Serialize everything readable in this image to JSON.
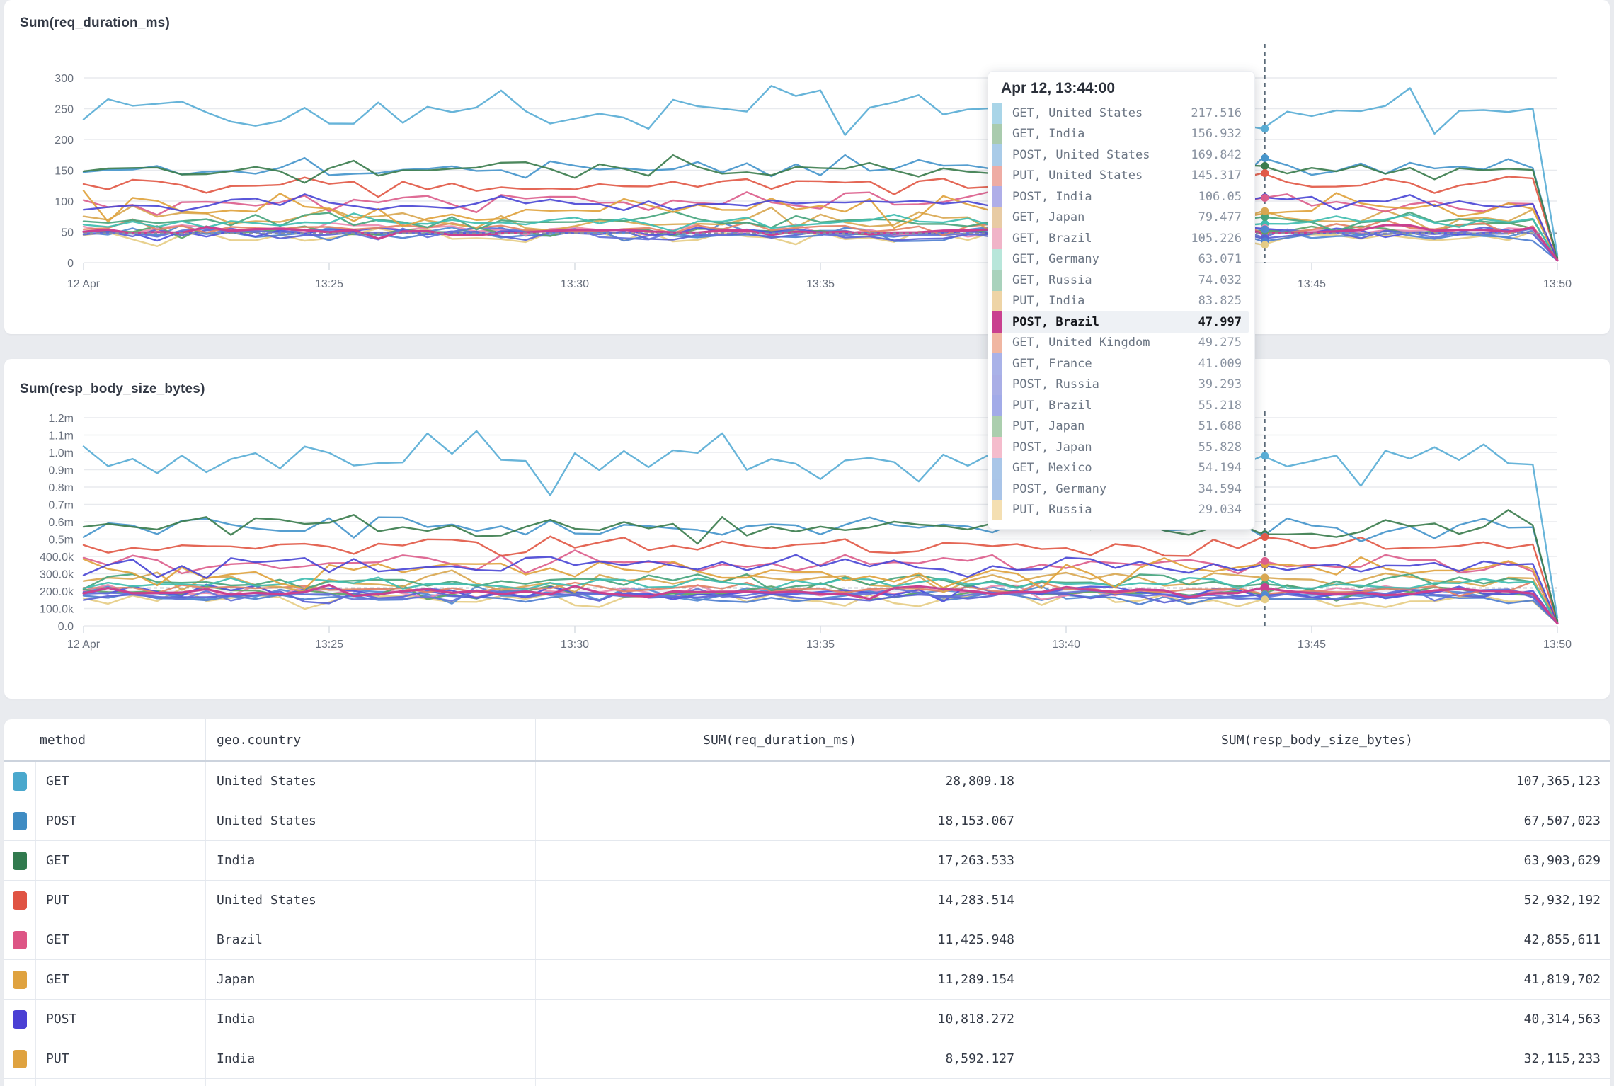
{
  "accent_colors": {
    "page_bg": "#e9ebef",
    "card_bg": "#ffffff",
    "grid": "#e8eaee",
    "axis_text": "#69707d",
    "title_text": "#343a46",
    "crosshair": "#5b6b79"
  },
  "chart_data": [
    {
      "type": "line",
      "title": "Sum(req_duration_ms)",
      "x_ticks": [
        "12 Apr",
        "13:25",
        "13:30",
        "13:35",
        "13:40",
        "13:45",
        "13:50"
      ],
      "y_tick_labels": [
        "0",
        "50",
        "100",
        "150",
        "200",
        "250",
        "300"
      ],
      "ylim": [
        0,
        300
      ],
      "grid": true,
      "legend": "tooltip-only",
      "hover_time": "Apr 12, 13:44:00",
      "highlighted_series": "POST, Brazil",
      "series": [
        {
          "name": "GET, United States",
          "color": "#5aaed6",
          "value_at_hover": 217.516,
          "approx_mean": 246,
          "amplitude": 26
        },
        {
          "name": "GET, India",
          "color": "#3d7e4f",
          "value_at_hover": 156.932,
          "approx_mean": 153,
          "amplitude": 16
        },
        {
          "name": "POST, United States",
          "color": "#4796cc",
          "value_at_hover": 169.842,
          "approx_mean": 153,
          "amplitude": 12
        },
        {
          "name": "PUT, United States",
          "color": "#e25a48",
          "value_at_hover": 145.317,
          "approx_mean": 130,
          "amplitude": 13
        },
        {
          "name": "POST, India",
          "color": "#4c49d6",
          "value_at_hover": 106.05,
          "approx_mean": 97,
          "amplitude": 11
        },
        {
          "name": "GET, Japan",
          "color": "#e0a33e",
          "value_at_hover": 79.477,
          "approx_mean": 84,
          "amplitude": 20
        },
        {
          "name": "GET, Brazil",
          "color": "#dc5f8d",
          "value_at_hover": 105.226,
          "approx_mean": 97,
          "amplitude": 12
        },
        {
          "name": "GET, Germany",
          "color": "#3fbdb0",
          "value_at_hover": 63.071,
          "approx_mean": 66,
          "amplitude": 9
        },
        {
          "name": "GET, Russia",
          "color": "#48a57e",
          "value_at_hover": 74.032,
          "approx_mean": 68,
          "amplitude": 11
        },
        {
          "name": "PUT, India",
          "color": "#d9a852",
          "value_at_hover": 83.825,
          "approx_mean": 70,
          "amplitude": 14
        },
        {
          "name": "POST, Brazil",
          "color": "#c9408f",
          "value_at_hover": 47.997,
          "approx_mean": 51,
          "amplitude": 7
        },
        {
          "name": "GET, United Kingdom",
          "color": "#e38266",
          "value_at_hover": 49.275,
          "approx_mean": 56,
          "amplitude": 8
        },
        {
          "name": "GET, France",
          "color": "#6472d8",
          "value_at_hover": 41.009,
          "approx_mean": 48,
          "amplitude": 7
        },
        {
          "name": "POST, Russia",
          "color": "#5a62d4",
          "value_at_hover": 39.293,
          "approx_mean": 45,
          "amplitude": 7
        },
        {
          "name": "PUT, Brazil",
          "color": "#5053dc",
          "value_at_hover": 55.218,
          "approx_mean": 50,
          "amplitude": 9
        },
        {
          "name": "PUT, Japan",
          "color": "#5ca368",
          "value_at_hover": 51.688,
          "approx_mean": 52,
          "amplitude": 8
        },
        {
          "name": "POST, Japan",
          "color": "#ec8ab0",
          "value_at_hover": 55.828,
          "approx_mean": 53,
          "amplitude": 9
        },
        {
          "name": "GET, Mexico",
          "color": "#5289d2",
          "value_at_hover": 54.194,
          "approx_mean": 50,
          "amplitude": 9
        },
        {
          "name": "POST, Germany",
          "color": "#4f7fd0",
          "value_at_hover": 34.594,
          "approx_mean": 44,
          "amplitude": 8
        },
        {
          "name": "PUT, Russia",
          "color": "#e6cd86",
          "value_at_hover": 29.034,
          "approx_mean": 40,
          "amplitude": 11
        }
      ]
    },
    {
      "type": "line",
      "title": "Sum(resp_body_size_bytes)",
      "x_ticks": [
        "12 Apr",
        "13:25",
        "13:30",
        "13:35",
        "13:40",
        "13:45",
        "13:50"
      ],
      "y_tick_labels": [
        "0.0",
        "100.0k",
        "200.0k",
        "300.0k",
        "400.0k",
        "0.5m",
        "0.6m",
        "0.7m",
        "0.8m",
        "0.9m",
        "1.0m",
        "1.1m",
        "1.2m"
      ],
      "ylim": [
        0,
        1200000
      ],
      "grid": true,
      "legend": "none",
      "highlighted_series": "POST, Brazil",
      "series": [
        {
          "name": "GET, United States",
          "color": "#5aaed6",
          "approx_mean": 940000,
          "amplitude": 110000
        },
        {
          "name": "GET, India",
          "color": "#3d7e4f",
          "approx_mean": 575000,
          "amplitude": 60000
        },
        {
          "name": "POST, United States",
          "color": "#4796cc",
          "approx_mean": 575000,
          "amplitude": 48000
        },
        {
          "name": "PUT, United States",
          "color": "#e25a48",
          "approx_mean": 465000,
          "amplitude": 50000
        },
        {
          "name": "POST, India",
          "color": "#4c49d6",
          "approx_mean": 355000,
          "amplitude": 42000
        },
        {
          "name": "GET, Japan",
          "color": "#e0a33e",
          "approx_mean": 310000,
          "amplitude": 75000
        },
        {
          "name": "GET, Brazil",
          "color": "#dc5f8d",
          "approx_mean": 360000,
          "amplitude": 45000
        },
        {
          "name": "GET, Germany",
          "color": "#3fbdb0",
          "approx_mean": 245000,
          "amplitude": 34000
        },
        {
          "name": "GET, Russia",
          "color": "#48a57e",
          "approx_mean": 255000,
          "amplitude": 40000
        },
        {
          "name": "PUT, India",
          "color": "#d9a852",
          "approx_mean": 265000,
          "amplitude": 52000
        },
        {
          "name": "POST, Brazil",
          "color": "#c9408f",
          "approx_mean": 195000,
          "amplitude": 26000
        },
        {
          "name": "GET, United Kingdom",
          "color": "#e38266",
          "approx_mean": 210000,
          "amplitude": 30000
        },
        {
          "name": "GET, France",
          "color": "#6472d8",
          "approx_mean": 180000,
          "amplitude": 26000
        },
        {
          "name": "POST, Russia",
          "color": "#5a62d4",
          "approx_mean": 170000,
          "amplitude": 26000
        },
        {
          "name": "PUT, Brazil",
          "color": "#5053dc",
          "approx_mean": 190000,
          "amplitude": 33000
        },
        {
          "name": "PUT, Japan",
          "color": "#5ca368",
          "approx_mean": 195000,
          "amplitude": 30000
        },
        {
          "name": "POST, Japan",
          "color": "#ec8ab0",
          "approx_mean": 200000,
          "amplitude": 33000
        },
        {
          "name": "GET, Mexico",
          "color": "#5289d2",
          "approx_mean": 190000,
          "amplitude": 33000
        },
        {
          "name": "POST, Germany",
          "color": "#4f7fd0",
          "approx_mean": 165000,
          "amplitude": 30000
        },
        {
          "name": "PUT, Russia",
          "color": "#e6cd86",
          "approx_mean": 150000,
          "amplitude": 40000
        }
      ]
    }
  ],
  "tooltip": {
    "header": "Apr 12, 13:44:00",
    "rows": [
      {
        "label": "GET, United States",
        "value": "217.516",
        "swatch": "#a9d5e8",
        "highlighted": false
      },
      {
        "label": "GET, India",
        "value": "156.932",
        "swatch": "#a9cbae",
        "highlighted": false
      },
      {
        "label": "POST, United States",
        "value": "169.842",
        "swatch": "#a9cbe8",
        "highlighted": false
      },
      {
        "label": "PUT, United States",
        "value": "145.317",
        "swatch": "#eeaca4",
        "highlighted": false
      },
      {
        "label": "POST, India",
        "value": "106.05",
        "swatch": "#afaee8",
        "highlighted": false
      },
      {
        "label": "GET, Japan",
        "value": "79.477",
        "swatch": "#e8cba4",
        "highlighted": false
      },
      {
        "label": "GET, Brazil",
        "value": "105.226",
        "swatch": "#f0b4c8",
        "highlighted": false
      },
      {
        "label": "GET, Germany",
        "value": "63.071",
        "swatch": "#b8e6da",
        "highlighted": false
      },
      {
        "label": "GET, Russia",
        "value": "74.032",
        "swatch": "#a9d2bc",
        "highlighted": false
      },
      {
        "label": "PUT, India",
        "value": "83.825",
        "swatch": "#eed4a6",
        "highlighted": false
      },
      {
        "label": "POST, Brazil",
        "value": "47.997",
        "swatch": "#c9408f",
        "highlighted": true
      },
      {
        "label": "GET, United Kingdom",
        "value": "49.275",
        "swatch": "#f0b6a2",
        "highlighted": false
      },
      {
        "label": "GET, France",
        "value": "41.009",
        "swatch": "#a9b2e8",
        "highlighted": false
      },
      {
        "label": "POST, Russia",
        "value": "39.293",
        "swatch": "#a9aee6",
        "highlighted": false
      },
      {
        "label": "PUT, Brazil",
        "value": "55.218",
        "swatch": "#a2abe8",
        "highlighted": false
      },
      {
        "label": "PUT, Japan",
        "value": "51.688",
        "swatch": "#abceae",
        "highlighted": false
      },
      {
        "label": "POST, Japan",
        "value": "55.828",
        "swatch": "#f4bccc",
        "highlighted": false
      },
      {
        "label": "GET, Mexico",
        "value": "54.194",
        "swatch": "#a9c6e8",
        "highlighted": false
      },
      {
        "label": "POST, Germany",
        "value": "34.594",
        "swatch": "#a9c4e8",
        "highlighted": false
      },
      {
        "label": "PUT, Russia",
        "value": "29.034",
        "swatch": "#f4dfb2",
        "highlighted": false
      }
    ]
  },
  "table": {
    "columns": [
      "method",
      "geo.country",
      "SUM(req_duration_ms)",
      "SUM(resp_body_size_bytes)"
    ],
    "rows": [
      {
        "color": "#4aa8cd",
        "method": "GET",
        "country": "United States",
        "req_duration": "28,809.18",
        "resp_body": "107,365,123"
      },
      {
        "color": "#3f8cc3",
        "method": "POST",
        "country": "United States",
        "req_duration": "18,153.067",
        "resp_body": "67,507,023"
      },
      {
        "color": "#317a4e",
        "method": "GET",
        "country": "India",
        "req_duration": "17,263.533",
        "resp_body": "63,903,629"
      },
      {
        "color": "#e05343",
        "method": "PUT",
        "country": "United States",
        "req_duration": "14,283.514",
        "resp_body": "52,932,192"
      },
      {
        "color": "#dd5585",
        "method": "GET",
        "country": "Brazil",
        "req_duration": "11,425.948",
        "resp_body": "42,855,611"
      },
      {
        "color": "#dfa23f",
        "method": "GET",
        "country": "Japan",
        "req_duration": "11,289.154",
        "resp_body": "41,819,702"
      },
      {
        "color": "#4a3fd4",
        "method": "POST",
        "country": "India",
        "req_duration": "10,818.272",
        "resp_body": "40,314,563"
      },
      {
        "color": "#dfa23f",
        "method": "PUT",
        "country": "India",
        "req_duration": "8,592.127",
        "resp_body": "32,115,233"
      }
    ],
    "partial_row_visible": true
  }
}
